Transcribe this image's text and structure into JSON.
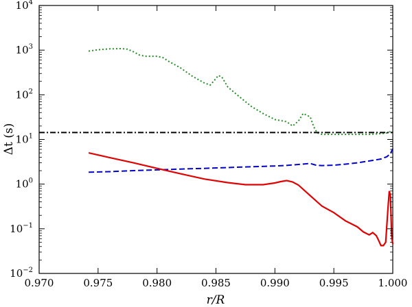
{
  "chart_data": {
    "type": "line",
    "xlabel": "r/R",
    "ylabel": "Δt (s)",
    "xlim": [
      0.97,
      1.0
    ],
    "ylim": [
      0.01,
      10000
    ],
    "yscale": "log",
    "grid": false,
    "x_ticks": [
      "0.970",
      "0.975",
      "0.980",
      "0.985",
      "0.990",
      "0.995",
      "1.000"
    ],
    "y_ticks": [
      {
        "base": "10",
        "exp": "−2"
      },
      {
        "base": "10",
        "exp": "−1"
      },
      {
        "base": "10",
        "exp": "0"
      },
      {
        "base": "10",
        "exp": "1"
      },
      {
        "base": "10",
        "exp": "2"
      },
      {
        "base": "10",
        "exp": "3"
      },
      {
        "base": "10",
        "exp": "4"
      }
    ],
    "series": [
      {
        "style": "dotted",
        "color": "#228B22",
        "points": [
          [
            0.9742,
            950
          ],
          [
            0.975,
            1020
          ],
          [
            0.976,
            1070
          ],
          [
            0.977,
            1080
          ],
          [
            0.9775,
            1050
          ],
          [
            0.978,
            920
          ],
          [
            0.9785,
            780
          ],
          [
            0.979,
            730
          ],
          [
            0.98,
            730
          ],
          [
            0.9805,
            680
          ],
          [
            0.981,
            560
          ],
          [
            0.982,
            400
          ],
          [
            0.983,
            260
          ],
          [
            0.984,
            185
          ],
          [
            0.9845,
            165
          ],
          [
            0.9848,
            200
          ],
          [
            0.9852,
            270
          ],
          [
            0.9855,
            250
          ],
          [
            0.986,
            150
          ],
          [
            0.987,
            90
          ],
          [
            0.988,
            55
          ],
          [
            0.989,
            38
          ],
          [
            0.99,
            28
          ],
          [
            0.991,
            25
          ],
          [
            0.9915,
            20
          ],
          [
            0.992,
            26
          ],
          [
            0.9924,
            38
          ],
          [
            0.993,
            32
          ],
          [
            0.9933,
            19
          ],
          [
            0.9936,
            14
          ],
          [
            0.994,
            13
          ],
          [
            0.995,
            13
          ],
          [
            0.996,
            13
          ],
          [
            0.997,
            13
          ],
          [
            0.998,
            13
          ],
          [
            0.999,
            13.5
          ],
          [
            0.9995,
            14
          ],
          [
            0.9998,
            15
          ]
        ]
      },
      {
        "style": "dash-dot",
        "color": "#000000",
        "points": [
          [
            0.97,
            14.3
          ],
          [
            1.0,
            14.3
          ]
        ]
      },
      {
        "style": "dashed",
        "color": "#0000CD",
        "points": [
          [
            0.9742,
            1.85
          ],
          [
            0.976,
            1.9
          ],
          [
            0.978,
            2.0
          ],
          [
            0.98,
            2.08
          ],
          [
            0.982,
            2.17
          ],
          [
            0.984,
            2.25
          ],
          [
            0.986,
            2.35
          ],
          [
            0.988,
            2.45
          ],
          [
            0.99,
            2.55
          ],
          [
            0.991,
            2.62
          ],
          [
            0.992,
            2.75
          ],
          [
            0.993,
            2.9
          ],
          [
            0.9935,
            2.65
          ],
          [
            0.994,
            2.6
          ],
          [
            0.995,
            2.65
          ],
          [
            0.996,
            2.8
          ],
          [
            0.997,
            3.0
          ],
          [
            0.998,
            3.3
          ],
          [
            0.999,
            3.65
          ],
          [
            0.9995,
            4.1
          ],
          [
            0.9998,
            4.8
          ],
          [
            1.0,
            6.2
          ]
        ]
      },
      {
        "style": "solid",
        "color": "#E00000",
        "points": [
          [
            0.9742,
            5.0
          ],
          [
            0.976,
            3.9
          ],
          [
            0.978,
            3.0
          ],
          [
            0.98,
            2.25
          ],
          [
            0.982,
            1.7
          ],
          [
            0.984,
            1.3
          ],
          [
            0.986,
            1.08
          ],
          [
            0.9875,
            0.97
          ],
          [
            0.989,
            0.97
          ],
          [
            0.99,
            1.06
          ],
          [
            0.9905,
            1.14
          ],
          [
            0.991,
            1.2
          ],
          [
            0.9915,
            1.12
          ],
          [
            0.992,
            0.95
          ],
          [
            0.993,
            0.55
          ],
          [
            0.994,
            0.32
          ],
          [
            0.995,
            0.23
          ],
          [
            0.996,
            0.15
          ],
          [
            0.997,
            0.11
          ],
          [
            0.9975,
            0.085
          ],
          [
            0.998,
            0.073
          ],
          [
            0.9983,
            0.082
          ],
          [
            0.9986,
            0.07
          ],
          [
            0.9988,
            0.055
          ],
          [
            0.999,
            0.042
          ],
          [
            0.9992,
            0.042
          ],
          [
            0.9994,
            0.05
          ],
          [
            0.9996,
            0.3
          ],
          [
            0.9997,
            0.7
          ],
          [
            0.9998,
            0.55
          ],
          [
            0.9999,
            0.07
          ],
          [
            1.0,
            0.045
          ]
        ]
      }
    ]
  }
}
